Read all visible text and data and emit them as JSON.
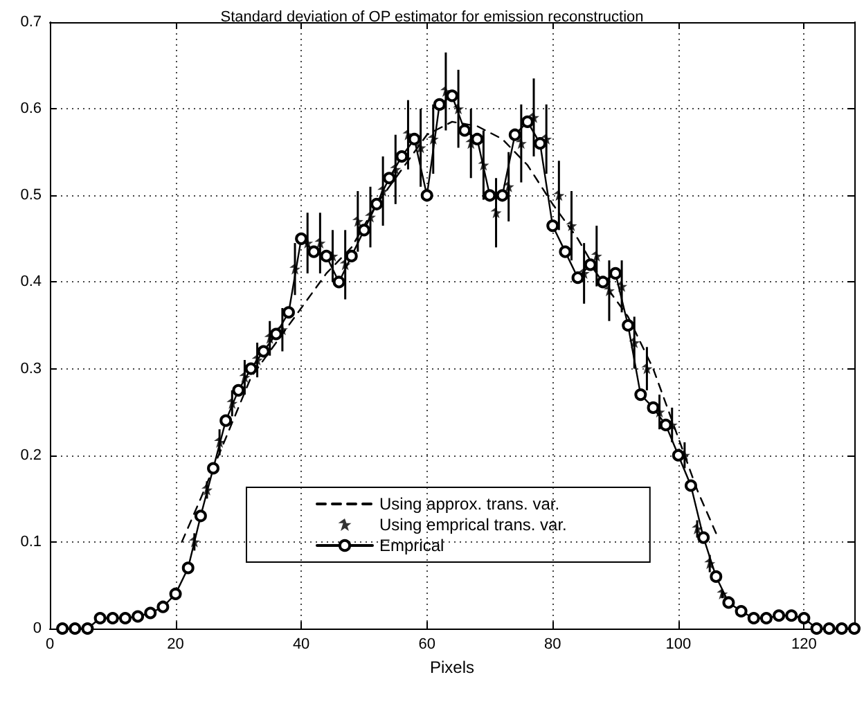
{
  "chart_data": {
    "type": "line",
    "title": "Standard deviation of OP estimator for emission reconstruction",
    "xlabel": "Pixels",
    "xlim": [
      0,
      128
    ],
    "xticks": [
      0,
      20,
      40,
      60,
      80,
      100,
      120
    ],
    "ylim": [
      0,
      0.7
    ],
    "yticks": [
      0,
      0.1,
      0.2,
      0.3,
      0.4,
      0.5,
      0.6,
      0.7
    ],
    "grid": true,
    "legend": "bottom",
    "series": [
      {
        "name": "Using approx. trans. var.",
        "color": "#000000",
        "line_style": "dashed",
        "marker": "none",
        "x": [
          21,
          24,
          28,
          32,
          36,
          40,
          44,
          48,
          52,
          56,
          60,
          64,
          68,
          72,
          76,
          80,
          84,
          88,
          92,
          96,
          100,
          103,
          106
        ],
        "values": [
          0.1,
          0.15,
          0.22,
          0.29,
          0.33,
          0.37,
          0.41,
          0.44,
          0.49,
          0.53,
          0.57,
          0.585,
          0.58,
          0.565,
          0.535,
          0.49,
          0.45,
          0.4,
          0.36,
          0.3,
          0.22,
          0.16,
          0.11
        ]
      },
      {
        "name": "Using emprical trans. var.",
        "type": "scatter",
        "color": "#000000",
        "marker": "star",
        "x": [
          23,
          25,
          27,
          29,
          31,
          33,
          35,
          37,
          39,
          41,
          43,
          45,
          47,
          49,
          51,
          53,
          55,
          57,
          59,
          61,
          63,
          65,
          67,
          69,
          71,
          73,
          75,
          77,
          79,
          81,
          83,
          85,
          87,
          89,
          91,
          93,
          95,
          97,
          99,
          101,
          103,
          105,
          107
        ],
        "values": [
          0.1,
          0.16,
          0.215,
          0.26,
          0.29,
          0.31,
          0.335,
          0.345,
          0.415,
          0.445,
          0.445,
          0.43,
          0.42,
          0.47,
          0.475,
          0.505,
          0.53,
          0.57,
          0.555,
          0.565,
          0.62,
          0.6,
          0.56,
          0.535,
          0.48,
          0.51,
          0.56,
          0.59,
          0.565,
          0.5,
          0.465,
          0.41,
          0.43,
          0.39,
          0.395,
          0.33,
          0.3,
          0.25,
          0.235,
          0.2,
          0.115,
          0.075,
          0.04
        ],
        "errors": [
          0.01,
          0.01,
          0.015,
          0.015,
          0.02,
          0.02,
          0.02,
          0.025,
          0.03,
          0.035,
          0.035,
          0.03,
          0.04,
          0.035,
          0.035,
          0.04,
          0.04,
          0.04,
          0.045,
          0.04,
          0.045,
          0.045,
          0.04,
          0.04,
          0.04,
          0.04,
          0.045,
          0.045,
          0.04,
          0.04,
          0.04,
          0.035,
          0.035,
          0.035,
          0.03,
          0.03,
          0.025,
          0.02,
          0.02,
          0.015,
          0.01,
          0.01,
          0.005
        ]
      },
      {
        "name": "Emprical",
        "color": "#000000",
        "line_style": "solid",
        "marker": "circle",
        "x": [
          2,
          4,
          6,
          8,
          10,
          12,
          14,
          16,
          18,
          20,
          22,
          24,
          26,
          28,
          30,
          32,
          34,
          36,
          38,
          40,
          42,
          44,
          46,
          48,
          50,
          52,
          54,
          56,
          58,
          60,
          62,
          64,
          66,
          68,
          70,
          72,
          74,
          76,
          78,
          80,
          82,
          84,
          86,
          88,
          90,
          92,
          94,
          96,
          98,
          100,
          102,
          104,
          106,
          108,
          110,
          112,
          114,
          116,
          118,
          120,
          122,
          124,
          126,
          128
        ],
        "values": [
          0,
          0,
          0,
          0.012,
          0.012,
          0.012,
          0.014,
          0.018,
          0.025,
          0.04,
          0.07,
          0.13,
          0.185,
          0.24,
          0.275,
          0.3,
          0.32,
          0.34,
          0.365,
          0.45,
          0.435,
          0.43,
          0.4,
          0.43,
          0.46,
          0.49,
          0.52,
          0.545,
          0.565,
          0.5,
          0.605,
          0.615,
          0.575,
          0.565,
          0.5,
          0.5,
          0.57,
          0.585,
          0.56,
          0.465,
          0.435,
          0.405,
          0.42,
          0.4,
          0.41,
          0.35,
          0.27,
          0.255,
          0.235,
          0.2,
          0.165,
          0.105,
          0.06,
          0.03,
          0.02,
          0.012,
          0.012,
          0.015,
          0.015,
          0.012,
          0,
          0,
          0,
          0
        ]
      }
    ]
  }
}
